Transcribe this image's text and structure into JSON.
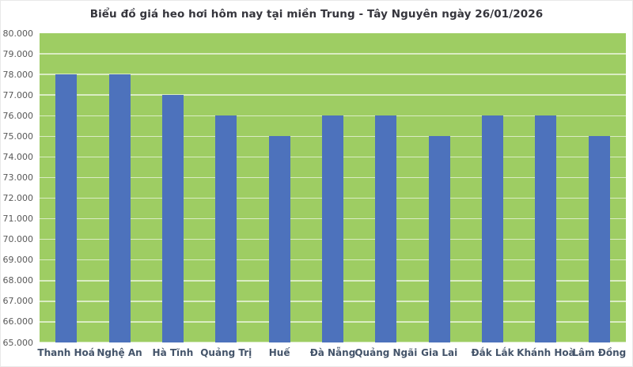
{
  "chart_data": {
    "type": "bar",
    "title": "Biểu đồ giá heo hơi hôm nay tại miền Trung - Tây Nguyên ngày 26/01/2026",
    "categories": [
      "Thanh Hoá",
      "Nghệ An",
      "Hà Tĩnh",
      "Quảng Trị",
      "Huế",
      "Đà Nẵng",
      "Quảng Ngãi",
      "Gia Lai",
      "Đắk Lắk",
      "Khánh Hoà",
      "Lâm Đồng"
    ],
    "values": [
      78000,
      78000,
      77000,
      76000,
      75000,
      76000,
      76000,
      75000,
      76000,
      76000,
      75000
    ],
    "y_tick_labels": [
      "80.000",
      "79.000",
      "78.000",
      "77.000",
      "76.000",
      "75.000",
      "74.000",
      "73.000",
      "72.000",
      "71.000",
      "70.000",
      "69.000",
      "68.000",
      "67.000",
      "66.000",
      "65.000"
    ],
    "ylim": [
      65000,
      80000
    ],
    "y_step": 1000,
    "xlabel": "",
    "ylabel": "",
    "grid": true,
    "legend_position": "none",
    "colors": {
      "bar": "#4D72BC",
      "plot_background": "#9ECD63",
      "title_text": "#35353c",
      "x_label_text": "#44546A",
      "y_label_text": "#595959"
    }
  }
}
